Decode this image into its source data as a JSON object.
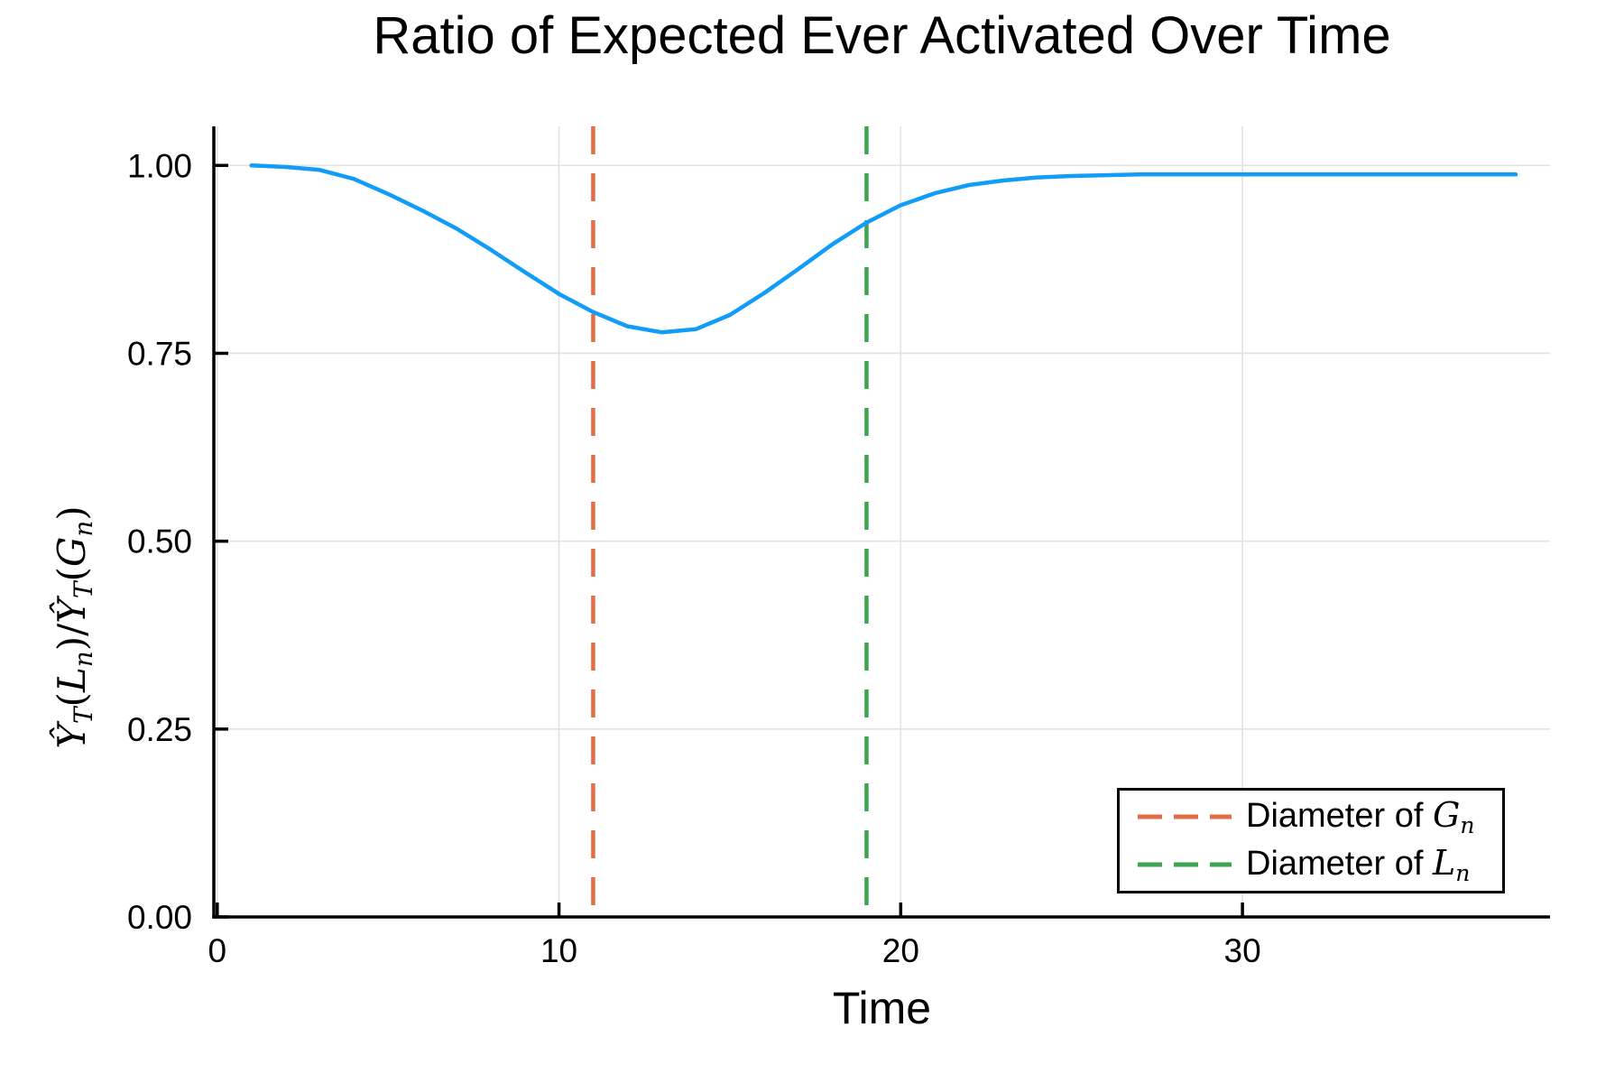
{
  "chart_data": {
    "type": "line",
    "title": "Ratio of Expected Ever Activated Over Time",
    "xlabel": "Time",
    "ylabel": "Ŷ_T(L_n)/Ŷ_T(G_n)",
    "ylabel_parts": [
      {
        "text": "Ŷ",
        "style": "var"
      },
      {
        "text": "T",
        "style": "sub"
      },
      {
        "text": "(",
        "style": "plain"
      },
      {
        "text": "L",
        "style": "var"
      },
      {
        "text": "n",
        "style": "sub"
      },
      {
        "text": ")/",
        "style": "plain"
      },
      {
        "text": "Ŷ",
        "style": "var"
      },
      {
        "text": "T",
        "style": "sub"
      },
      {
        "text": "(",
        "style": "plain"
      },
      {
        "text": "G",
        "style": "var"
      },
      {
        "text": "n",
        "style": "sub"
      },
      {
        "text": ")",
        "style": "plain"
      }
    ],
    "xlim": [
      -0.1,
      39.0
    ],
    "ylim": [
      0,
      1.052
    ],
    "grid": true,
    "xticks": [
      {
        "v": 0,
        "label": "0"
      },
      {
        "v": 10,
        "label": "10"
      },
      {
        "v": 20,
        "label": "20"
      },
      {
        "v": 30,
        "label": "30"
      }
    ],
    "yticks": [
      {
        "v": 0.0,
        "label": "0.00"
      },
      {
        "v": 0.25,
        "label": "0.25"
      },
      {
        "v": 0.5,
        "label": "0.50"
      },
      {
        "v": 0.75,
        "label": "0.75"
      },
      {
        "v": 1.0,
        "label": "1.00"
      }
    ],
    "series": [
      {
        "name": "ratio-curve",
        "color": "#119CF8",
        "x": [
          1,
          2,
          3,
          4,
          5,
          6,
          7,
          8,
          9,
          10,
          11,
          12,
          13,
          14,
          15,
          16,
          17,
          18,
          19,
          20,
          21,
          22,
          23,
          24,
          25,
          26,
          27,
          28,
          29,
          30,
          31,
          32,
          33,
          34,
          35,
          36,
          37,
          38
        ],
        "y": [
          1.0,
          0.998,
          0.994,
          0.982,
          0.962,
          0.94,
          0.916,
          0.888,
          0.858,
          0.829,
          0.805,
          0.786,
          0.778,
          0.782,
          0.801,
          0.83,
          0.862,
          0.895,
          0.924,
          0.947,
          0.963,
          0.974,
          0.98,
          0.984,
          0.986,
          0.987,
          0.988,
          0.988,
          0.988,
          0.988,
          0.988,
          0.988,
          0.988,
          0.988,
          0.988,
          0.988,
          0.988,
          0.988
        ]
      }
    ],
    "vlines": [
      {
        "x": 11,
        "color": "#E26E45",
        "label_prefix": "Diameter of ",
        "label_var": "G",
        "label_sub": "n"
      },
      {
        "x": 19,
        "color": "#3FA44F",
        "label_prefix": "Diameter of ",
        "label_var": "L",
        "label_sub": "n"
      }
    ],
    "legend_position": "bottom-right",
    "colors": {
      "grid": "#E2E2E2",
      "axis": "#000000",
      "text": "#000000",
      "background": "#ffffff"
    }
  }
}
